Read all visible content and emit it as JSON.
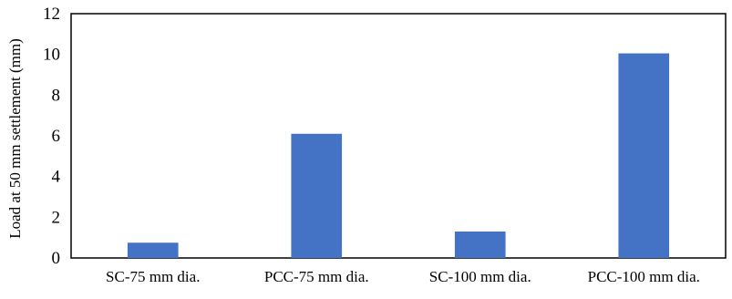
{
  "chart_data": {
    "type": "bar",
    "title": "",
    "xlabel": "",
    "ylabel": "Load at 50 mm settlement (mm)",
    "categories": [
      "SC-75 mm dia.",
      "PCC-75 mm dia.",
      "SC-100 mm dia.",
      "PCC-100 mm dia."
    ],
    "values": [
      0.75,
      6.1,
      1.3,
      10.05
    ],
    "ylim": [
      0,
      12
    ],
    "yticks": [
      "0",
      "2",
      "4",
      "6",
      "8",
      "10",
      "12"
    ],
    "grid": false,
    "legend": "none",
    "colors": {
      "bar": "#4472C4",
      "axis": "#000000"
    }
  }
}
